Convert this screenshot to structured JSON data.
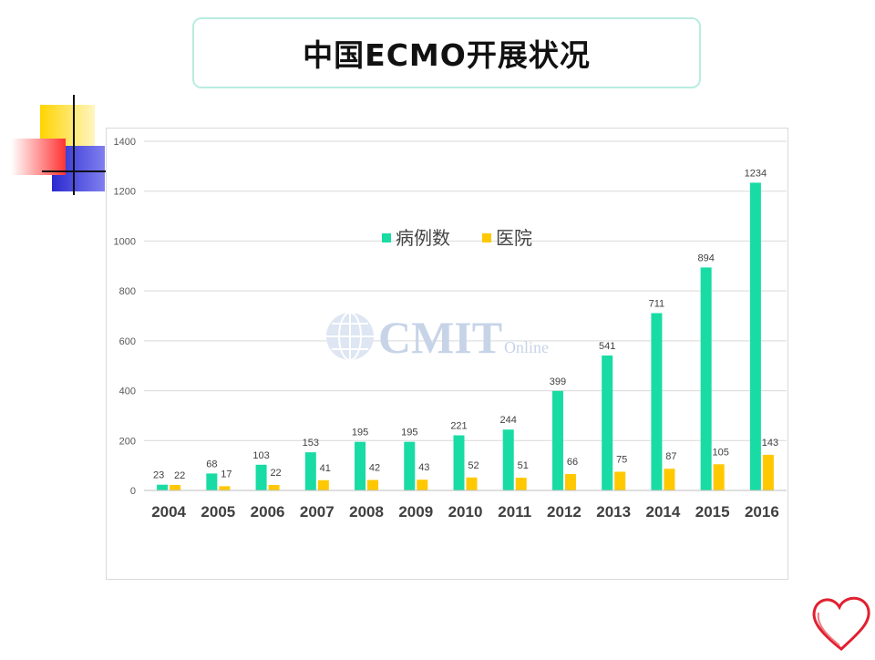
{
  "slide": {
    "title": "中国ECMO开展状况"
  },
  "colors": {
    "cases": "#18dca4",
    "hospitals": "#ffc800",
    "title_border": "#b9ece0"
  },
  "watermark": {
    "brand": "CMIT",
    "sub": "Online"
  },
  "chart_data": {
    "type": "bar",
    "categories": [
      "2004",
      "2005",
      "2006",
      "2007",
      "2008",
      "2009",
      "2010",
      "2011",
      "2012",
      "2013",
      "2014",
      "2015",
      "2016"
    ],
    "series": [
      {
        "name": "病例数",
        "values": [
          23,
          68,
          103,
          153,
          195,
          195,
          221,
          244,
          399,
          541,
          711,
          894,
          1234
        ]
      },
      {
        "name": "医院",
        "values": [
          22,
          17,
          22,
          41,
          42,
          43,
          52,
          51,
          66,
          75,
          87,
          105,
          143
        ]
      }
    ],
    "yticks": [
      0,
      200,
      400,
      600,
      800,
      1000,
      1200,
      1400
    ],
    "ylim": [
      0,
      1400
    ],
    "grid": true,
    "legend": "top-center"
  }
}
